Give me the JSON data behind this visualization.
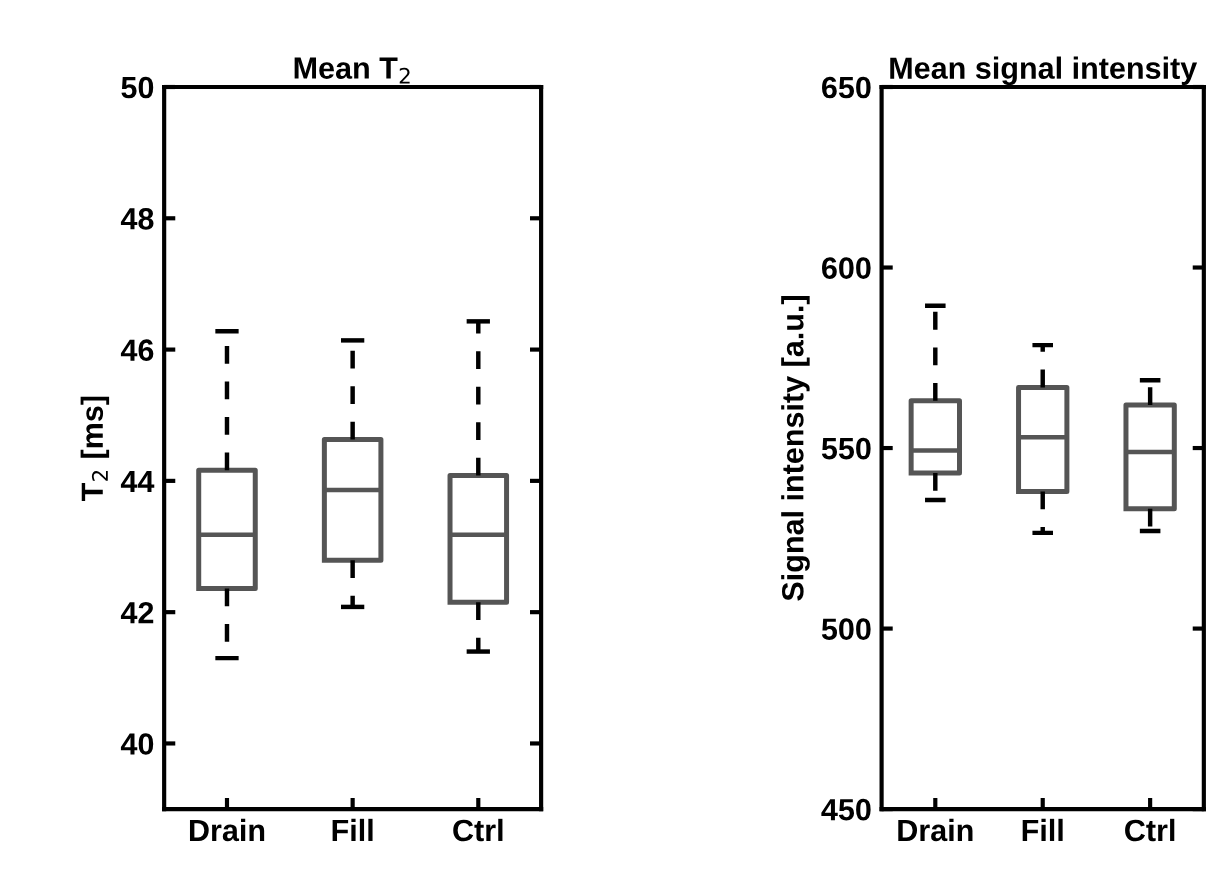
{
  "chart_data": [
    {
      "type": "box",
      "title": "Mean T$_{2}$",
      "ylabel": "T$_{2}$ [ms]",
      "categories": [
        "Drain",
        "Fill",
        "Ctrl"
      ],
      "ylim": [
        39,
        50
      ],
      "yticks": [
        40,
        42,
        44,
        46,
        48,
        50
      ],
      "color": "#555555",
      "boxes": [
        {
          "low": 41.3,
          "q1": 42.36,
          "median": 43.18,
          "q3": 44.16,
          "high": 46.28
        },
        {
          "low": 42.08,
          "q1": 42.79,
          "median": 43.86,
          "q3": 44.63,
          "high": 46.14
        },
        {
          "low": 41.4,
          "q1": 42.15,
          "median": 43.18,
          "q3": 44.08,
          "high": 46.43
        }
      ]
    },
    {
      "type": "box",
      "title": "Mean signal intensity",
      "ylabel": "Signal intensity [a.u.]",
      "categories": [
        "Drain",
        "Fill",
        "Ctrl"
      ],
      "ylim": [
        450,
        650
      ],
      "yticks": [
        450,
        500,
        550,
        600,
        650
      ],
      "color": "#555555",
      "boxes": [
        {
          "low": 535.6,
          "q1": 543.1,
          "median": 549.3,
          "q3": 563.1,
          "high": 589.4
        },
        {
          "low": 526.5,
          "q1": 538,
          "median": 553,
          "q3": 566.8,
          "high": 578.5
        },
        {
          "low": 527,
          "q1": 533.2,
          "median": 548.9,
          "q3": 561.9,
          "high": 568.8
        }
      ]
    }
  ]
}
